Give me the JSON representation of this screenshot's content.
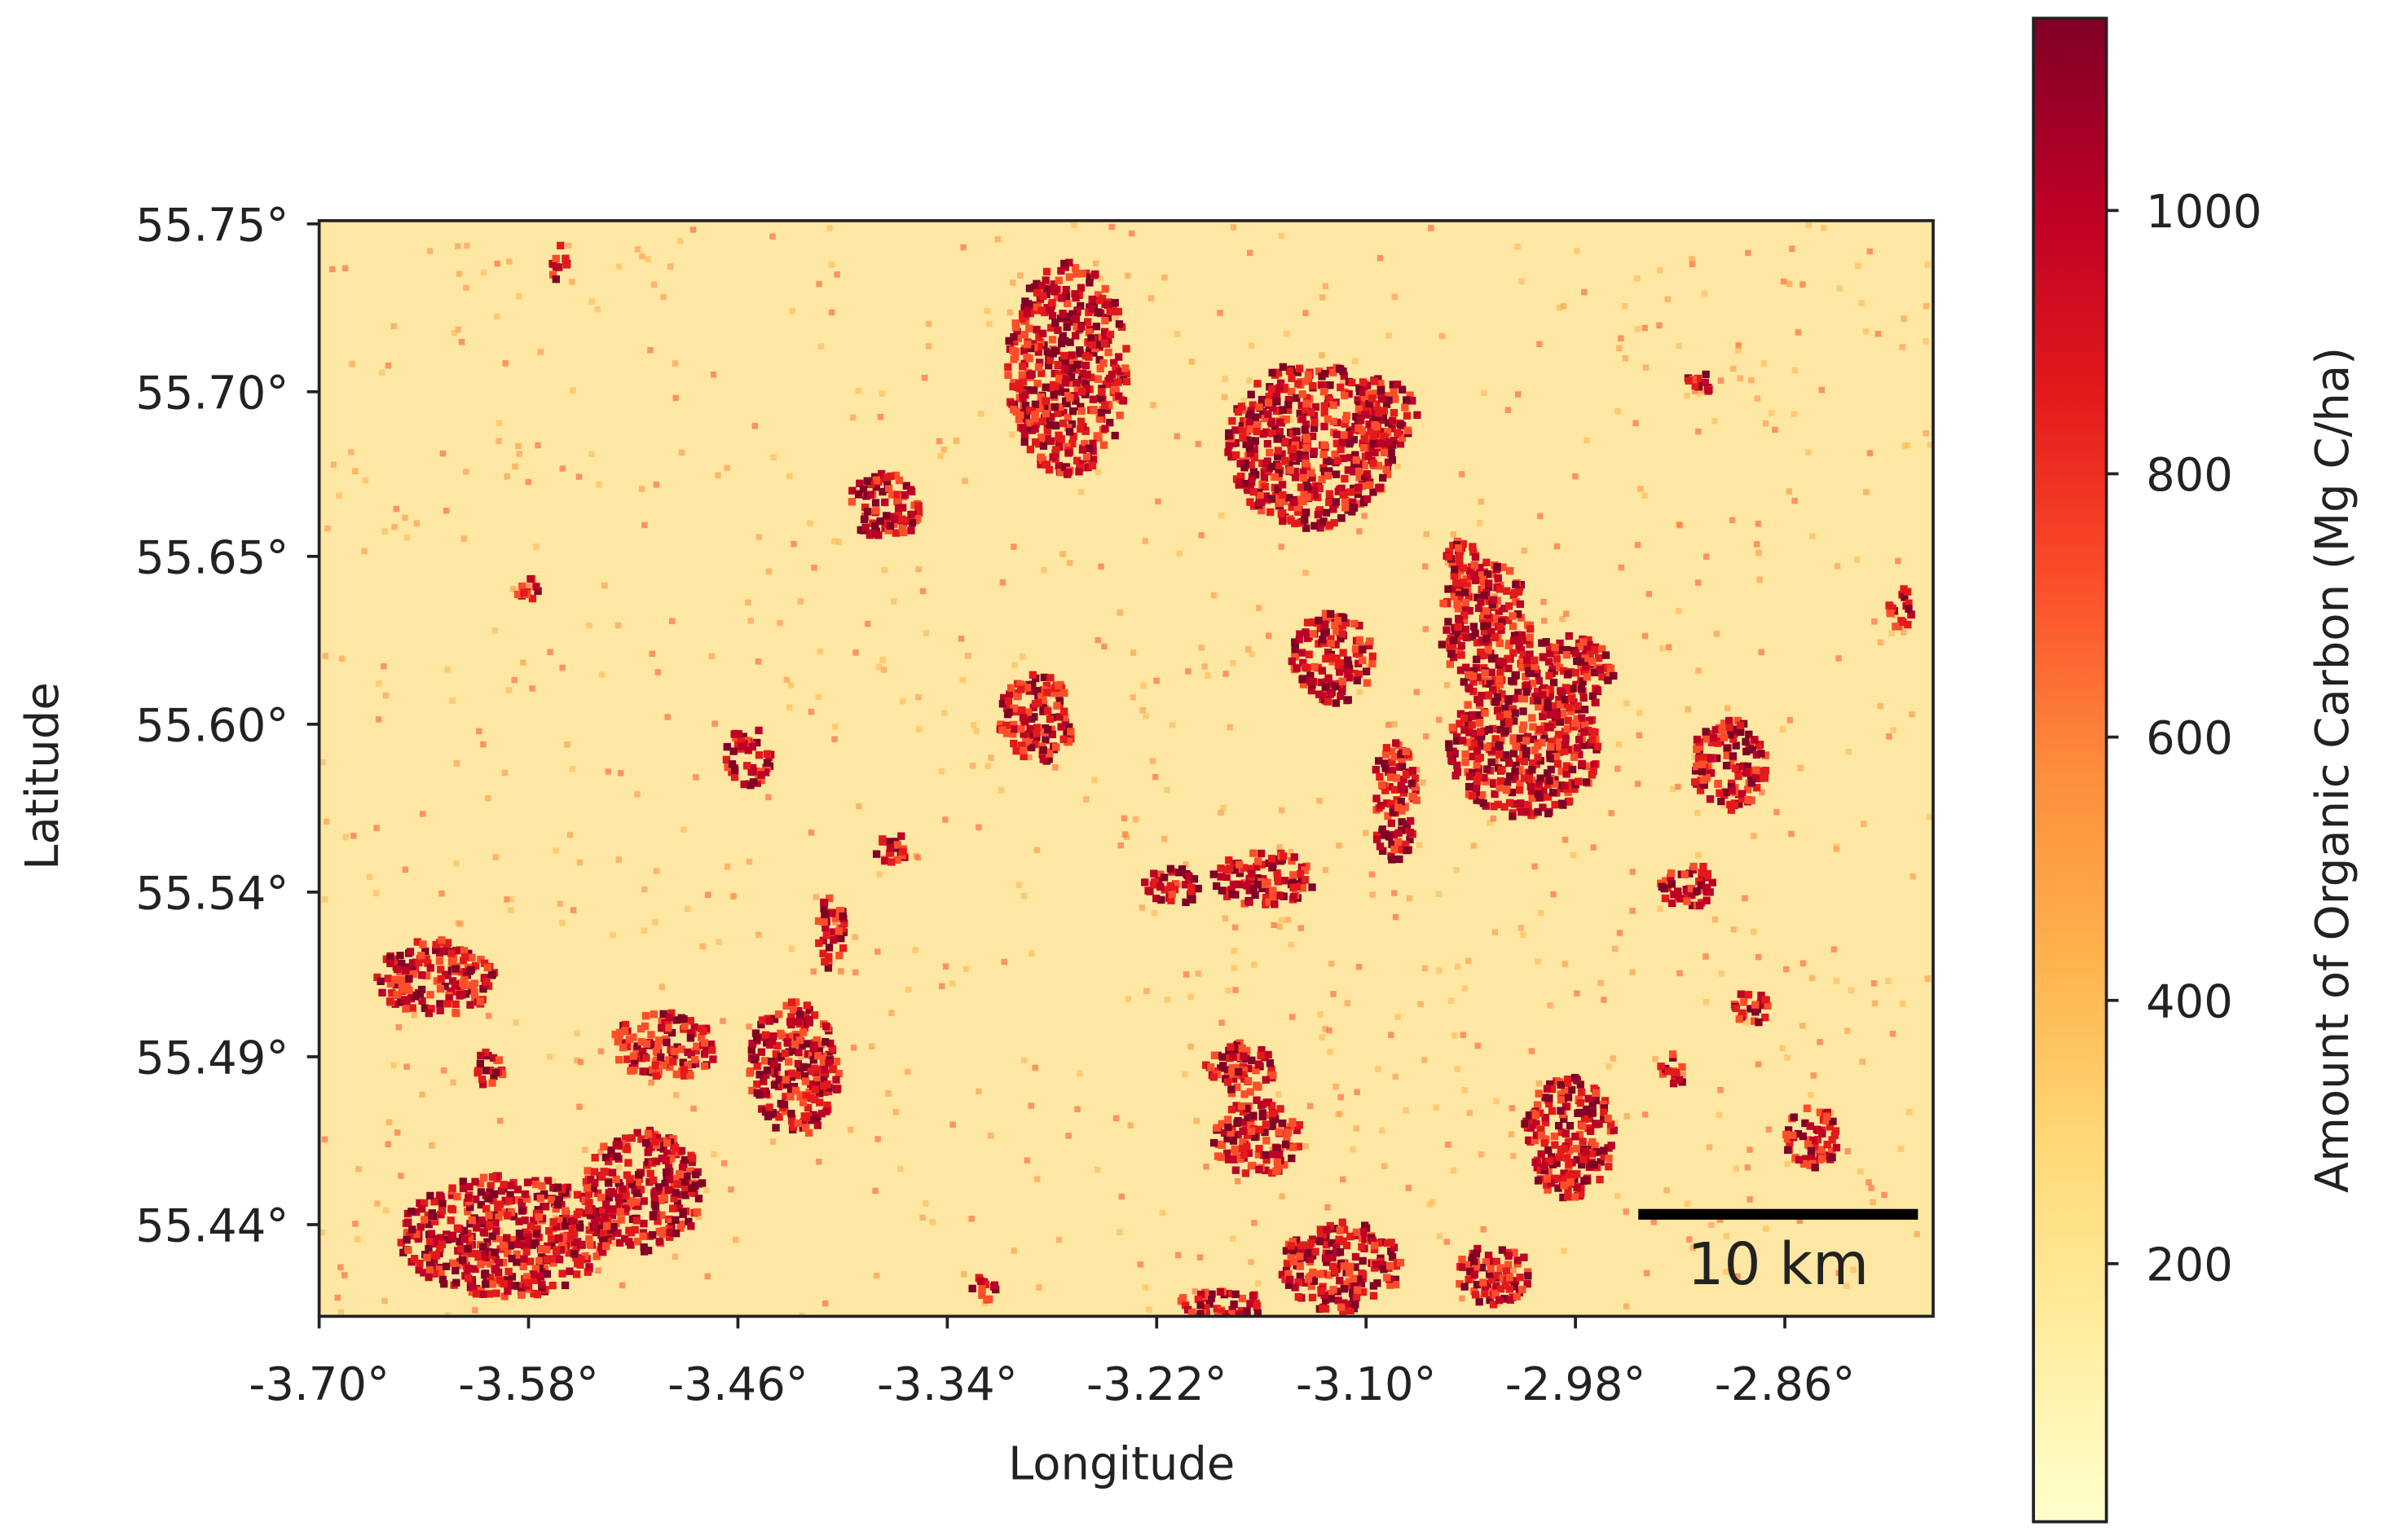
{
  "chart_data": {
    "type": "heatmap",
    "xlabel": "Longitude",
    "ylabel": "Latitude",
    "xlim": [
      -3.7,
      -2.775
    ],
    "ylim": [
      55.4116,
      55.751
    ],
    "xticks": [
      {
        "value": -3.7,
        "label": "-3.70°"
      },
      {
        "value": -3.58,
        "label": "-3.58°"
      },
      {
        "value": -3.46,
        "label": "-3.46°"
      },
      {
        "value": -3.34,
        "label": "-3.34°"
      },
      {
        "value": -3.22,
        "label": "-3.22°"
      },
      {
        "value": -3.1,
        "label": "-3.10°"
      },
      {
        "value": -2.98,
        "label": "-2.98°"
      },
      {
        "value": -2.86,
        "label": "-2.86°"
      }
    ],
    "yticks": [
      {
        "value": 55.75,
        "label": "55.75°"
      },
      {
        "value": 55.698,
        "label": "55.70°"
      },
      {
        "value": 55.647,
        "label": "55.65°"
      },
      {
        "value": 55.595,
        "label": "55.60°"
      },
      {
        "value": 55.543,
        "label": "55.54°"
      },
      {
        "value": 55.492,
        "label": "55.49°"
      },
      {
        "value": 55.44,
        "label": "55.44°"
      }
    ],
    "colorbar": {
      "label": "Amount of Organic Carbon (Mg C/ha)",
      "lim": [
        4,
        1146
      ],
      "ticks": [
        200,
        400,
        600,
        800,
        1000
      ],
      "colors": [
        "#ffffcc",
        "#ffeda0",
        "#fed976",
        "#feb24c",
        "#fd8d3c",
        "#fc4e2a",
        "#e31a1c",
        "#bd0026",
        "#800026"
      ]
    },
    "scale_bar": "10 km"
  }
}
